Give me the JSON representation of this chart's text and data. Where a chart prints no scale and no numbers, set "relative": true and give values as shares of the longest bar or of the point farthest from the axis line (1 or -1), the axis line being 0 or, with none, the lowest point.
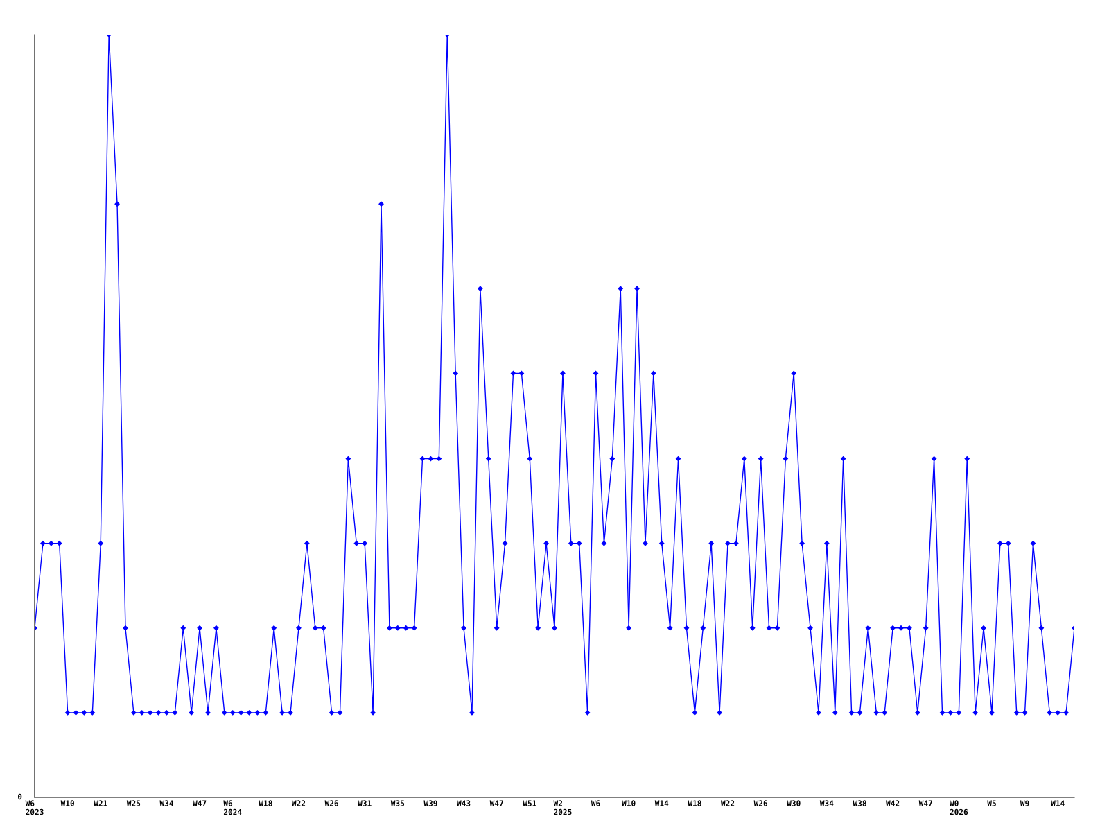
{
  "chart_data": {
    "type": "line",
    "relative": true,
    "marker": "diamond",
    "line_style": "solid",
    "grid": false,
    "annotations": [
      "0"
    ],
    "categories": [
      "W6\n2023",
      null,
      null,
      null,
      "W10",
      null,
      null,
      null,
      "W21",
      null,
      null,
      null,
      "W25",
      null,
      null,
      null,
      "W34",
      null,
      null,
      null,
      "W47",
      null,
      null,
      null,
      "W6\n2024",
      null,
      null,
      null,
      "W18",
      null,
      null,
      null,
      "W22",
      null,
      null,
      null,
      "W26",
      null,
      null,
      null,
      "W31",
      null,
      null,
      null,
      "W35",
      null,
      null,
      null,
      "W39",
      null,
      null,
      null,
      "W43",
      null,
      null,
      null,
      "W47",
      null,
      null,
      null,
      "W51",
      null,
      null,
      null,
      "W2\n2025",
      null,
      null,
      null,
      "W6",
      null,
      null,
      null,
      "W10",
      null,
      null,
      null,
      "W14",
      null,
      null,
      null,
      "W18",
      null,
      null,
      null,
      "W22",
      null,
      null,
      null,
      "W26",
      null,
      null,
      null,
      "W30",
      null,
      null,
      null,
      "W34",
      null,
      null,
      null,
      "W38",
      null,
      null,
      null,
      "W42",
      null,
      null,
      null,
      "W47",
      null,
      null,
      null,
      "W0\n2026",
      null,
      null,
      null,
      "W5",
      null,
      null,
      null,
      "W9",
      null,
      null,
      null,
      "W14",
      null,
      null
    ],
    "series": [
      {
        "color": "#0000ff",
        "values": [
          0.222,
          0.333,
          0.333,
          0.333,
          0.111,
          0.111,
          0.111,
          0.111,
          0.333,
          1,
          0.778,
          0.222,
          0.111,
          0.111,
          0.111,
          0.111,
          0.111,
          0.111,
          0.222,
          0.111,
          0.222,
          0.111,
          0.222,
          0.111,
          0.111,
          0.111,
          0.111,
          0.111,
          0.111,
          0.222,
          0.111,
          0.111,
          0.222,
          0.333,
          0.222,
          0.222,
          0.111,
          0.111,
          0.444,
          0.333,
          0.333,
          0.111,
          0.778,
          0.222,
          0.222,
          0.222,
          0.222,
          0.444,
          0.444,
          0.444,
          1,
          0.556,
          0.222,
          0.111,
          0.667,
          0.444,
          0.222,
          0.333,
          0.556,
          0.556,
          0.444,
          0.222,
          0.333,
          0.222,
          0.556,
          0.333,
          0.333,
          0.111,
          0.556,
          0.333,
          0.444,
          0.667,
          0.222,
          0.667,
          0.333,
          0.556,
          0.333,
          0.222,
          0.444,
          0.222,
          0.111,
          0.222,
          0.333,
          0.111,
          0.333,
          0.333,
          0.444,
          0.222,
          0.444,
          0.222,
          0.222,
          0.444,
          0.556,
          0.333,
          0.222,
          0.111,
          0.333,
          0.111,
          0.444,
          0.111,
          0.111,
          0.222,
          0.111,
          0.111,
          0.222,
          0.222,
          0.222,
          0.111,
          0.222,
          0.444,
          0.111,
          0.111,
          0.111,
          0.444,
          0.111,
          0.222,
          0.111,
          0.333,
          0.333,
          0.111,
          0.111,
          0.333,
          0.222,
          0.111,
          0.111,
          0.111,
          0.222
        ]
      }
    ]
  }
}
